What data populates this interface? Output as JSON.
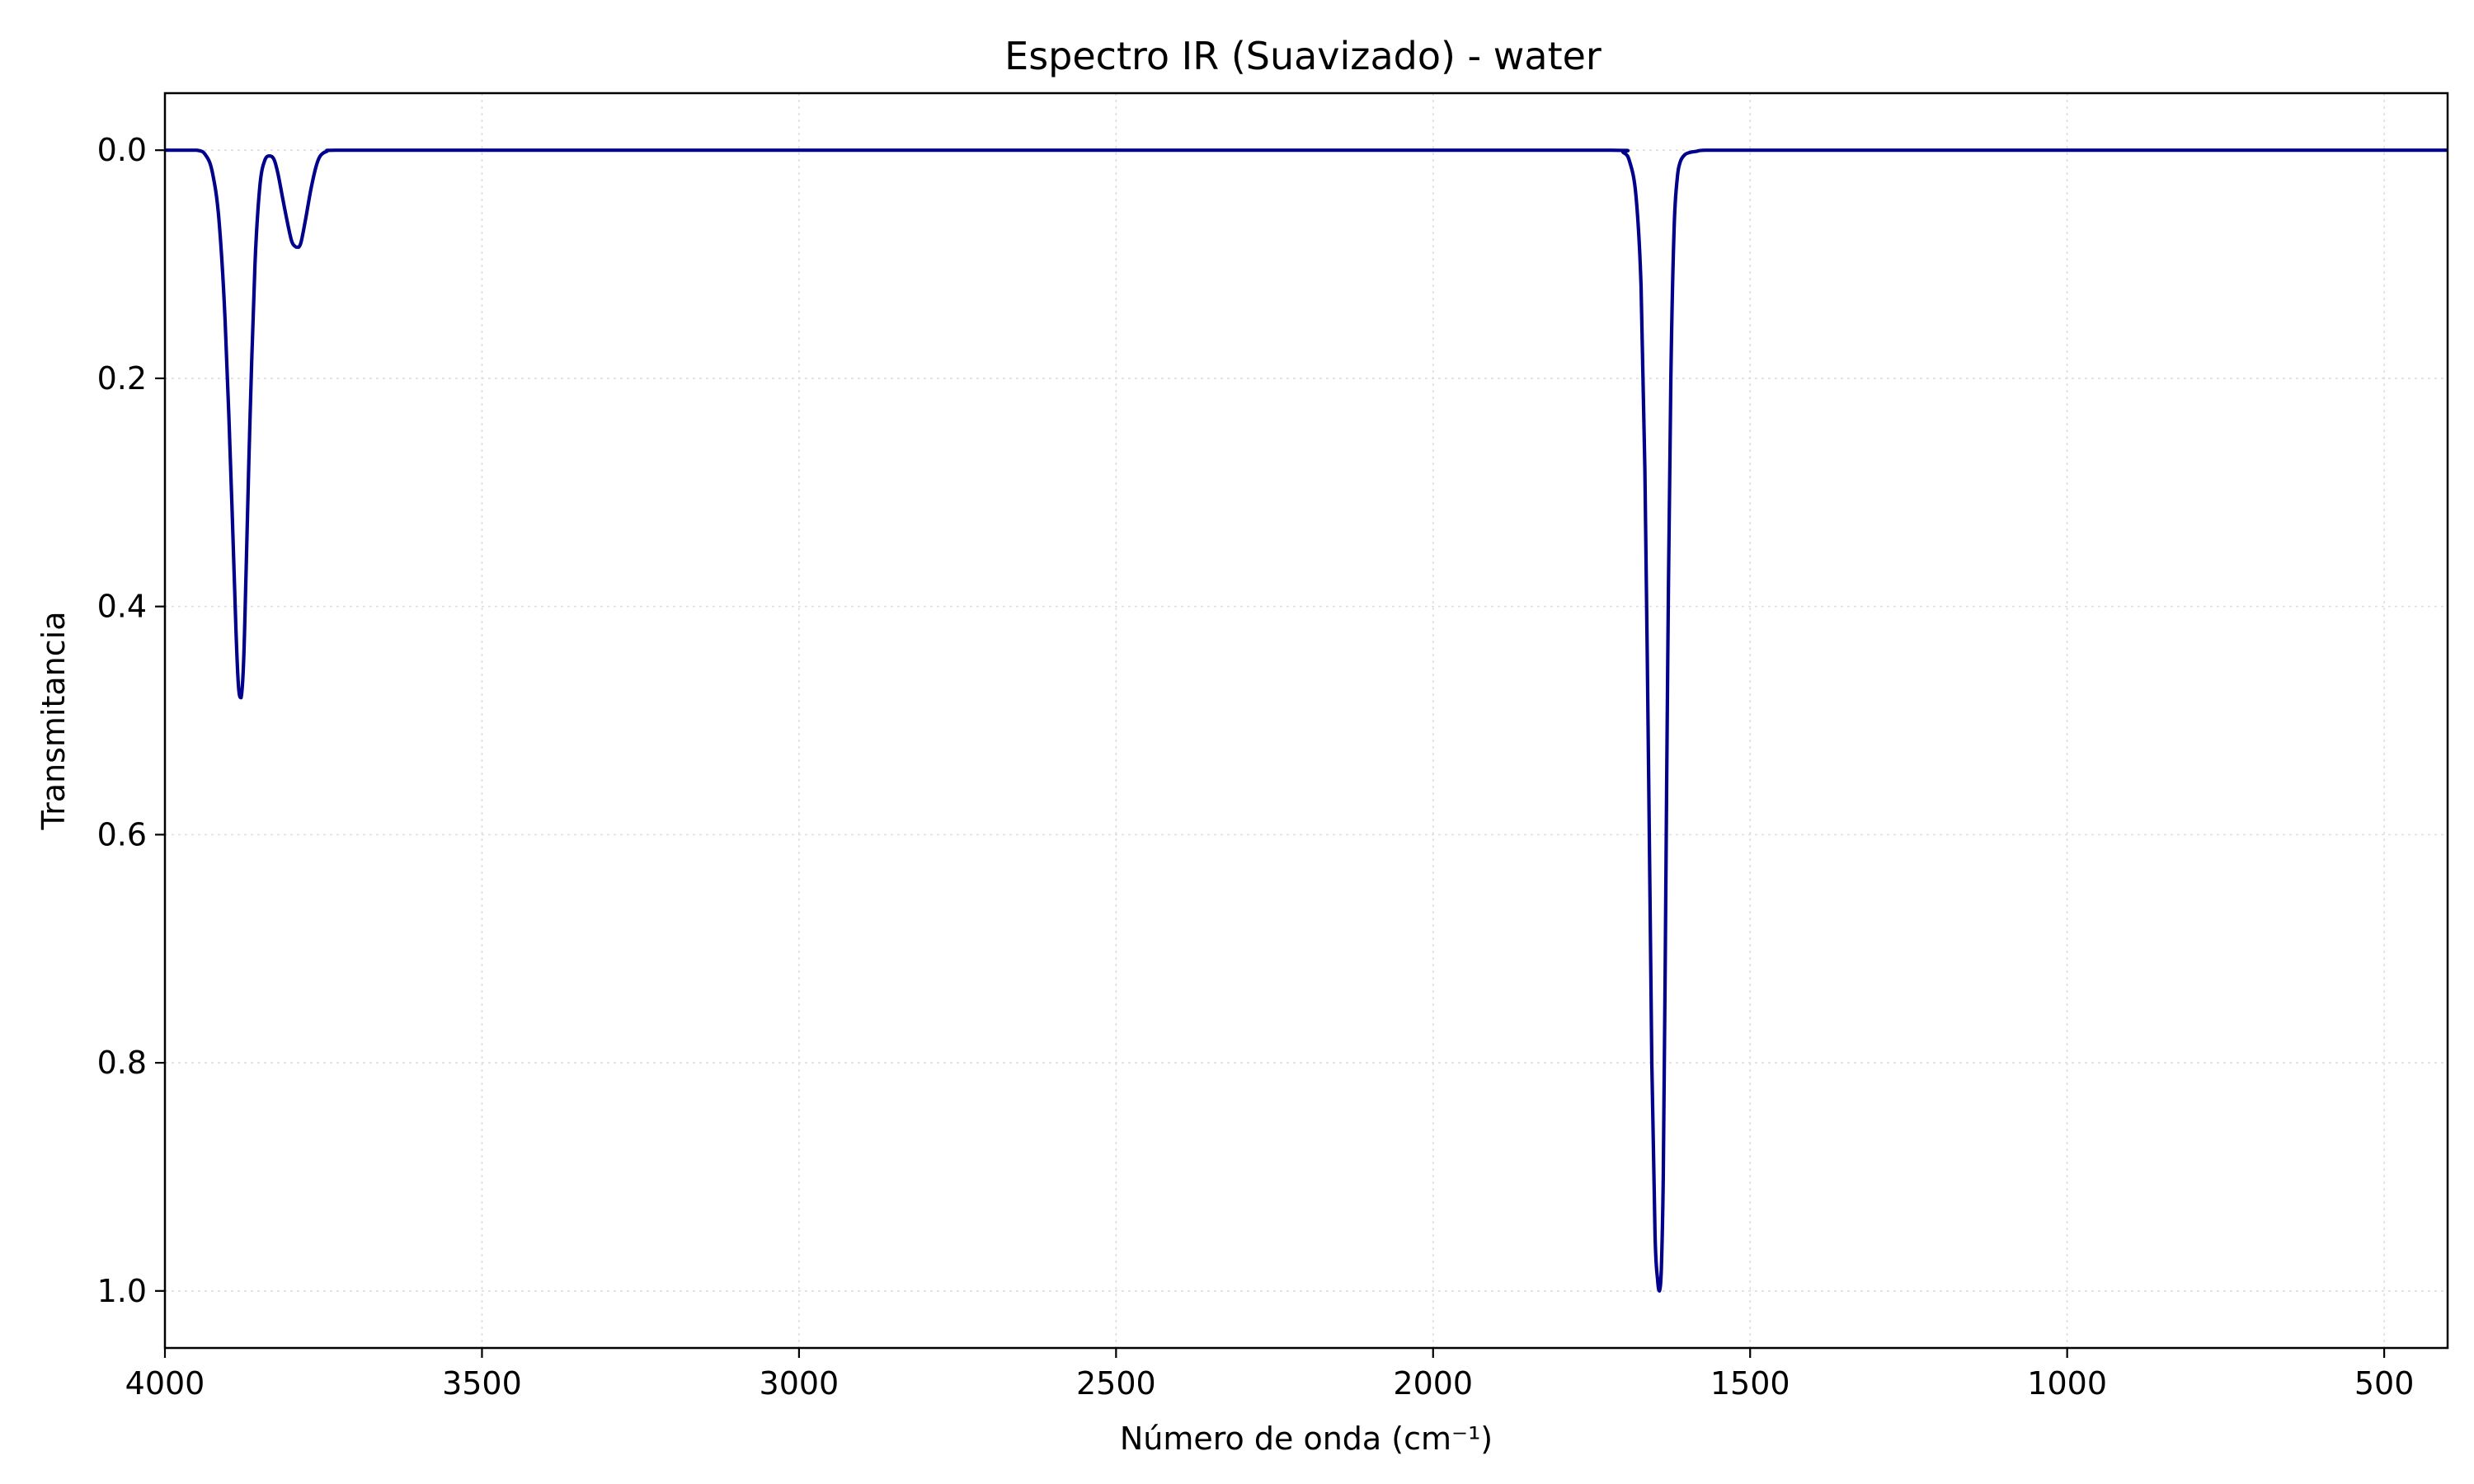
{
  "chart_data": {
    "type": "line",
    "title": "Espectro IR (Suavizado) - water",
    "xlabel": "Número de onda (cm⁻¹)",
    "ylabel": "Transmitancia",
    "xlim": [
      4000,
      400
    ],
    "ylim": [
      1.05,
      -0.05
    ],
    "x_inverted": true,
    "y_inverted": true,
    "xticks": [
      4000,
      3500,
      3000,
      2500,
      2000,
      1500,
      1000,
      500
    ],
    "yticks": [
      0.0,
      0.2,
      0.4,
      0.6,
      0.8,
      1.0
    ],
    "xtick_labels": [
      "4000",
      "3500",
      "3000",
      "2500",
      "2000",
      "1500",
      "1000",
      "500"
    ],
    "ytick_labels": [
      "0.0",
      "0.2",
      "0.4",
      "0.6",
      "0.8",
      "1.0"
    ],
    "grid": true,
    "line_color": "#00008b",
    "series": [
      {
        "x": [
          4000,
          3950,
          3935,
          3925,
          3915,
          3905,
          3895,
          3888,
          3884,
          3880,
          3876,
          3872,
          3866,
          3858,
          3850,
          3842,
          3835,
          3828,
          3822,
          3815,
          3808,
          3800,
          3793,
          3789,
          3785,
          3778,
          3770,
          3762,
          3755,
          3745,
          3730,
          3600,
          3000,
          2500,
          2000,
          1720,
          1700,
          1690,
          1680,
          1672,
          1666,
          1660,
          1655,
          1650,
          1646,
          1643,
          1640,
          1637,
          1634,
          1630,
          1625,
          1620,
          1615,
          1610,
          1603,
          1595,
          1585,
          1570,
          1500,
          1000,
          500,
          400
        ],
        "y": [
          0.0,
          0.0,
          0.005,
          0.02,
          0.06,
          0.15,
          0.3,
          0.42,
          0.47,
          0.48,
          0.45,
          0.37,
          0.24,
          0.1,
          0.03,
          0.008,
          0.005,
          0.008,
          0.02,
          0.04,
          0.06,
          0.08,
          0.085,
          0.085,
          0.08,
          0.06,
          0.035,
          0.015,
          0.005,
          0.001,
          0.0,
          0.0,
          0.0,
          0.0,
          0.0,
          0.0,
          0.002,
          0.01,
          0.04,
          0.12,
          0.28,
          0.55,
          0.8,
          0.95,
          0.99,
          1.0,
          0.98,
          0.9,
          0.72,
          0.45,
          0.2,
          0.07,
          0.025,
          0.01,
          0.004,
          0.002,
          0.001,
          0.0,
          0.0,
          0.0,
          0.0,
          0.0
        ]
      }
    ]
  }
}
